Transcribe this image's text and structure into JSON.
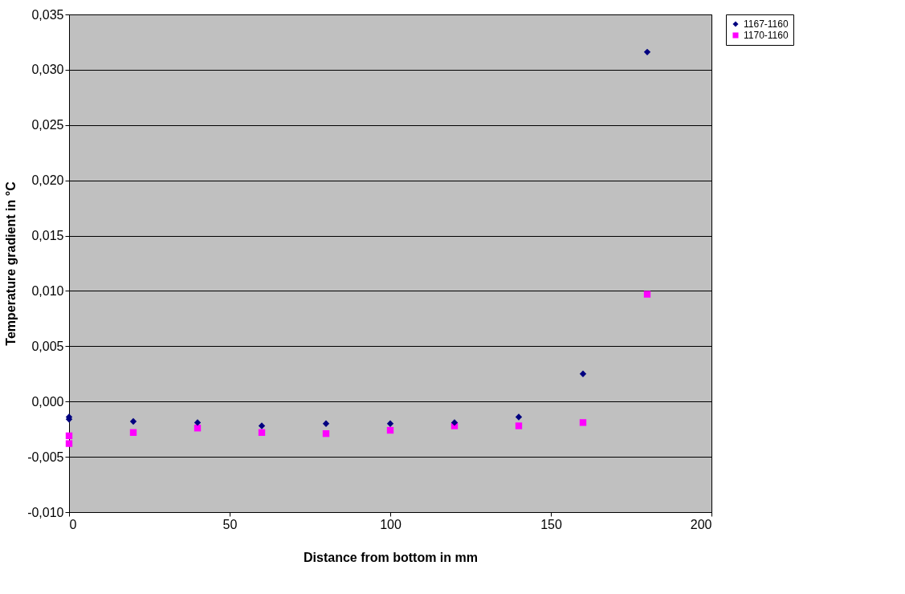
{
  "chart_data": {
    "type": "scatter",
    "xlabel": "Distance from bottom in mm",
    "ylabel": "Temperature gradient in °C",
    "xlim": [
      0,
      200
    ],
    "xticks": [
      0,
      50,
      100,
      150,
      200
    ],
    "ylim": [
      -0.01,
      0.035
    ],
    "yticks": [
      {
        "value": -0.01,
        "label": "-0,010"
      },
      {
        "value": -0.005,
        "label": "-0,005"
      },
      {
        "value": 0,
        "label": "0,000"
      },
      {
        "value": 0.005,
        "label": "0,005"
      },
      {
        "value": 0.01,
        "label": "0,010"
      },
      {
        "value": 0.015,
        "label": "0,015"
      },
      {
        "value": 0.02,
        "label": "0,020"
      },
      {
        "value": 0.025,
        "label": "0,025"
      },
      {
        "value": 0.03,
        "label": "0,030"
      },
      {
        "value": 0.035,
        "label": "0,035"
      }
    ],
    "grid": "y",
    "legend": "right",
    "series": [
      {
        "name": "1167-1160",
        "color": "#000080",
        "marker": "diamond",
        "x": [
          0,
          0,
          20,
          40,
          60,
          80,
          100,
          120,
          140,
          160,
          180
        ],
        "values": [
          -0.0014,
          -0.0016,
          -0.0018,
          -0.0019,
          -0.0022,
          -0.002,
          -0.002,
          -0.0019,
          -0.0014,
          0.0025,
          0.0316
        ]
      },
      {
        "name": "1170-1160",
        "color": "#ff00ff",
        "marker": "square",
        "x": [
          0,
          0,
          20,
          40,
          60,
          80,
          100,
          120,
          140,
          160,
          180
        ],
        "values": [
          -0.0031,
          -0.0038,
          -0.0028,
          -0.0024,
          -0.0028,
          -0.0029,
          -0.0026,
          -0.0022,
          -0.0022,
          -0.0019,
          0.0097
        ]
      }
    ]
  }
}
